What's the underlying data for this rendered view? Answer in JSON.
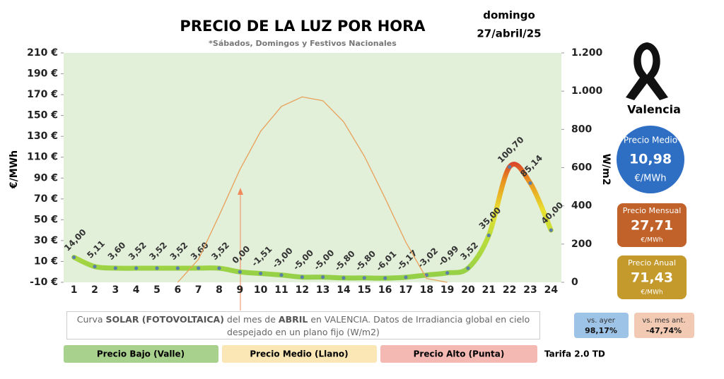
{
  "header": {
    "title": "PRECIO DE LA LUZ POR HORA",
    "subtitle": "*Sábados, Domingos y Festivos Nacionales",
    "weekday": "domingo",
    "date": "27/abril/25",
    "city": "Valencia"
  },
  "chart_data": {
    "type": "line",
    "categories": [
      "1",
      "2",
      "3",
      "4",
      "5",
      "6",
      "7",
      "8",
      "9",
      "10",
      "11",
      "12",
      "13",
      "14",
      "15",
      "16",
      "17",
      "18",
      "19",
      "20",
      "21",
      "22",
      "23",
      "24"
    ],
    "series": [
      {
        "color": "#8fce4a",
        "values": [
          14.0,
          5.11,
          3.6,
          3.52,
          3.52,
          3.52,
          3.6,
          3.52,
          0.0,
          -1.51,
          -3.0,
          -5.0,
          -5.0,
          -5.8,
          -5.8,
          -6.01,
          -5.17,
          -3.02,
          -0.99,
          3.52,
          35.0,
          100.7,
          85.14,
          40.0
        ],
        "value_labels": [
          "14,00",
          "5,11",
          "3,60",
          "3,52",
          "3,52",
          "3,52",
          "3,60",
          "3,52",
          "0,00",
          "-1,51",
          "-3,00",
          "-5,00",
          "-5,00",
          "-5,80",
          "-5,80",
          "-6,01",
          "-5,17",
          "-3,02",
          "-0,99",
          "3,52",
          "35,00",
          "100,70",
          "85,14",
          "40,00"
        ]
      },
      {
        "color": "#e8a15a",
        "axis": "y2",
        "values": [
          null,
          null,
          null,
          null,
          null,
          0,
          120,
          350,
          590,
          790,
          920,
          970,
          950,
          840,
          660,
          440,
          210,
          20,
          0,
          null,
          null,
          null,
          null,
          null
        ]
      }
    ],
    "ylim": [
      -10,
      210
    ],
    "yticks": [
      {
        "value": -10,
        "label": "-10 €"
      },
      {
        "value": 10,
        "label": "10 €"
      },
      {
        "value": 30,
        "label": "30 €"
      },
      {
        "value": 50,
        "label": "50 €"
      },
      {
        "value": 70,
        "label": "70 €"
      },
      {
        "value": 90,
        "label": "90 €"
      },
      {
        "value": 110,
        "label": "110 €"
      },
      {
        "value": 130,
        "label": "130 €"
      },
      {
        "value": 150,
        "label": "150 €"
      },
      {
        "value": 170,
        "label": "170 €"
      },
      {
        "value": 190,
        "label": "190 €"
      },
      {
        "value": 210,
        "label": "210 €"
      }
    ],
    "y2lim": [
      0,
      1200
    ],
    "y2ticks": [
      0,
      200,
      400,
      600,
      800,
      {
        "value": 1000,
        "label": "1.000"
      },
      {
        "value": 1200,
        "label": "1.200"
      }
    ],
    "ylabel": "€/MWh",
    "y2label": "W/m2"
  },
  "stats": {
    "medio": {
      "label": "Precio Medio",
      "value": "10,98",
      "unit": "€/MWh"
    },
    "mensual": {
      "label": "Precio Mensual",
      "value": "27,71",
      "unit": "€/MWh"
    },
    "anual": {
      "label": "Precio Anual",
      "value": "71,43",
      "unit": "€/MWh"
    },
    "ayer": {
      "label": "vs. ayer",
      "value": "98,17%"
    },
    "mes": {
      "label": "vs. mes ant.",
      "value": "-47,74%"
    }
  },
  "note": [
    "Curva ",
    "SOLAR (FOTOVOLTAICA)",
    " del mes de ",
    "ABRIL",
    " en VALENCIA. Datos de Irradiancia global en cielo despejado en un plano fijo (W/m2)"
  ],
  "legend": [
    "Precio Bajo (Valle)",
    "Precio Medio (Llano)",
    "Precio Alto (Punta)",
    "Tarifa 2.0 TD"
  ]
}
